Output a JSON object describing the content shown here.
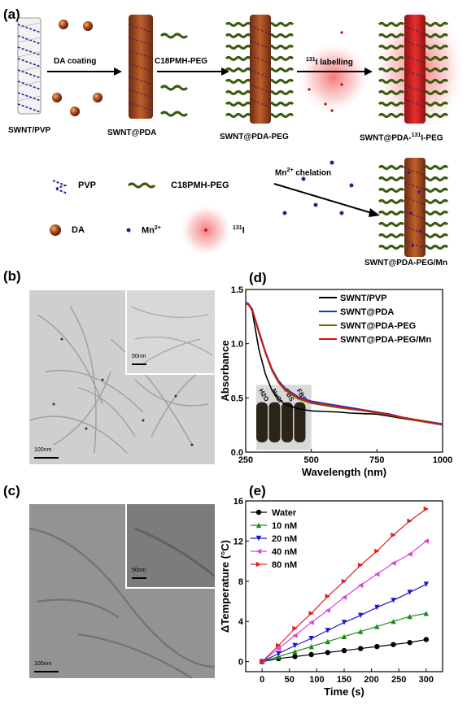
{
  "panels": {
    "a": {
      "label": "(a)",
      "steps": [
        "DA coating",
        "C18PMH-PEG",
        "131I labelling",
        "Mn2+ chelation"
      ],
      "step3_sup": "131",
      "step3_rest": "I labelling",
      "step4_main": "Mn",
      "step4_sup": "2+",
      "step4_rest": " chelation",
      "products": {
        "p1": "SWNT/PVP",
        "p2": "SWNT@PDA",
        "p3": "SWNT@PDA-PEG",
        "p4_pre": "SWNT@PDA-",
        "p4_sup": "131",
        "p4_post": "I-PEG",
        "p5": "SWNT@PDA-PEG/Mn"
      },
      "legend": {
        "pvp": "PVP",
        "c18": "C18PMH-PEG",
        "da": "DA",
        "mn_main": "Mn",
        "mn_sup": "2+",
        "i_sup": "131",
        "i_main": "I"
      }
    },
    "b": {
      "label": "(b)",
      "scale_main": "100nm",
      "scale_inset": "50nm"
    },
    "c": {
      "label": "(c)",
      "scale_main": "100nm",
      "scale_inset": "50nm"
    },
    "d": {
      "label": "(d)",
      "inset_labels": [
        "H2O",
        "NaCl",
        "PBS",
        "FBS"
      ]
    },
    "e": {
      "label": "(e)"
    }
  },
  "chart_data": [
    {
      "id": "d",
      "type": "line",
      "xlabel": "Wavelength (nm)",
      "ylabel": "Absorbance",
      "xlim": [
        250,
        1000
      ],
      "ylim": [
        0,
        1.5
      ],
      "xticks": [
        250,
        500,
        750,
        1000
      ],
      "yticks": [
        0.0,
        0.5,
        1.0,
        1.5
      ],
      "legend_position": "top-right",
      "series": [
        {
          "name": "SWNT/PVP",
          "color": "#000000",
          "x": [
            250,
            260,
            275,
            300,
            325,
            350,
            375,
            400,
            450,
            500,
            550,
            600,
            650,
            700,
            750,
            800,
            850,
            900,
            950,
            1000
          ],
          "y": [
            1.38,
            1.37,
            1.3,
            0.95,
            0.72,
            0.57,
            0.49,
            0.44,
            0.4,
            0.38,
            0.375,
            0.37,
            0.36,
            0.355,
            0.35,
            0.33,
            0.31,
            0.29,
            0.27,
            0.25
          ]
        },
        {
          "name": "SWNT@PDA",
          "color": "#1f2bd0",
          "x": [
            250,
            260,
            275,
            300,
            325,
            350,
            375,
            400,
            450,
            500,
            550,
            600,
            650,
            700,
            750,
            800,
            850,
            900,
            950,
            1000
          ],
          "y": [
            1.38,
            1.37,
            1.32,
            1.12,
            0.93,
            0.77,
            0.66,
            0.59,
            0.51,
            0.47,
            0.45,
            0.43,
            0.41,
            0.39,
            0.37,
            0.35,
            0.32,
            0.3,
            0.28,
            0.26
          ]
        },
        {
          "name": "SWNT@PDA-PEG",
          "color": "#6b6b00",
          "x": [
            250,
            260,
            275,
            300,
            325,
            350,
            375,
            400,
            450,
            500,
            550,
            600,
            650,
            700,
            750,
            800,
            850,
            900,
            950,
            1000
          ],
          "y": [
            1.37,
            1.36,
            1.31,
            1.1,
            0.91,
            0.75,
            0.64,
            0.57,
            0.49,
            0.45,
            0.43,
            0.41,
            0.395,
            0.38,
            0.36,
            0.34,
            0.315,
            0.29,
            0.27,
            0.25
          ]
        },
        {
          "name": "SWNT@PDA-PEG/Mn",
          "color": "#e01010",
          "x": [
            250,
            260,
            275,
            300,
            325,
            350,
            375,
            400,
            450,
            500,
            550,
            600,
            650,
            700,
            750,
            800,
            850,
            900,
            950,
            1000
          ],
          "y": [
            1.37,
            1.36,
            1.31,
            1.11,
            0.92,
            0.76,
            0.65,
            0.58,
            0.5,
            0.46,
            0.44,
            0.42,
            0.4,
            0.385,
            0.365,
            0.345,
            0.32,
            0.3,
            0.275,
            0.255
          ]
        }
      ]
    },
    {
      "id": "e",
      "type": "line",
      "xlabel": "Time (s)",
      "ylabel": "ΔTemperature (°C)",
      "xlim": [
        -30,
        330
      ],
      "ylim": [
        -1,
        16
      ],
      "xticks": [
        0,
        50,
        100,
        150,
        200,
        250,
        300
      ],
      "yticks": [
        0,
        4,
        8,
        12,
        16
      ],
      "legend_position": "top-left",
      "series": [
        {
          "name": "Water",
          "color": "#000000",
          "marker": "circle",
          "x": [
            0,
            30,
            60,
            90,
            120,
            150,
            180,
            210,
            240,
            270,
            300
          ],
          "y": [
            0,
            0.3,
            0.5,
            0.7,
            0.9,
            1.1,
            1.3,
            1.5,
            1.7,
            1.9,
            2.2
          ]
        },
        {
          "name": "10 nM",
          "color": "#1a8c1a",
          "marker": "triangle-up",
          "x": [
            0,
            30,
            60,
            90,
            120,
            150,
            180,
            210,
            240,
            270,
            300
          ],
          "y": [
            0,
            0.5,
            1.0,
            1.5,
            2.0,
            2.5,
            3.0,
            3.5,
            4.0,
            4.5,
            4.8
          ]
        },
        {
          "name": "20 nM",
          "color": "#1a1acc",
          "marker": "triangle-down",
          "x": [
            0,
            30,
            60,
            90,
            120,
            150,
            180,
            210,
            240,
            270,
            300
          ],
          "y": [
            0,
            0.8,
            1.6,
            2.3,
            3.1,
            3.9,
            4.6,
            5.4,
            6.1,
            6.9,
            7.7
          ]
        },
        {
          "name": "40 nM",
          "color": "#e040e0",
          "marker": "triangle-left",
          "x": [
            0,
            30,
            60,
            90,
            120,
            150,
            180,
            210,
            240,
            270,
            300
          ],
          "y": [
            0,
            1.3,
            2.6,
            3.9,
            5.1,
            6.4,
            7.6,
            8.7,
            9.8,
            10.7,
            12.0
          ]
        },
        {
          "name": "80 nM",
          "color": "#e02020",
          "marker": "triangle-right",
          "x": [
            0,
            30,
            60,
            90,
            120,
            150,
            180,
            210,
            240,
            270,
            300
          ],
          "y": [
            0,
            1.6,
            3.3,
            4.8,
            6.5,
            8.0,
            9.6,
            11.0,
            12.6,
            14.0,
            15.2
          ]
        }
      ]
    }
  ]
}
